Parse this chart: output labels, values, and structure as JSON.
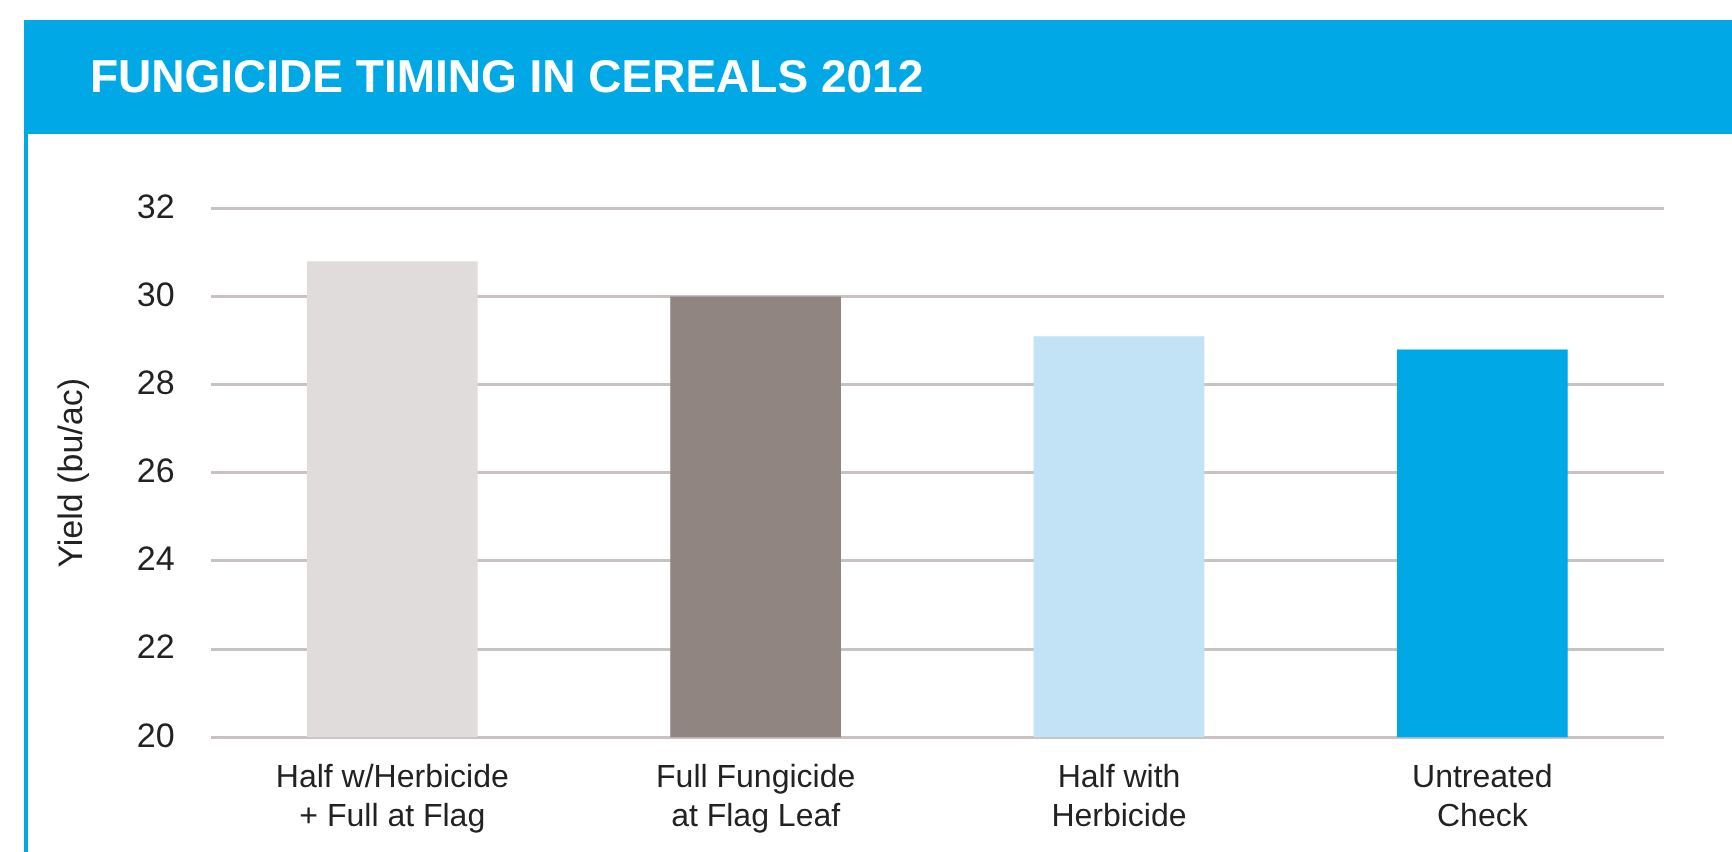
{
  "chart_data": {
    "type": "bar",
    "title": "FUNGICIDE TIMING IN CEREALS 2012",
    "ylabel": "Yield (bu/ac)",
    "categories": [
      "Half w/Herbicide\n+ Full at Flag",
      "Full Fungicide\nat Flag Leaf",
      "Half with\nHerbicide",
      "Untreated\nCheck"
    ],
    "values": [
      30.8,
      30.0,
      29.1,
      28.8
    ],
    "colors": [
      "#e0dcdb",
      "#908580",
      "#c2e2f6",
      "#00a9e6"
    ],
    "ylim": [
      20,
      32
    ],
    "yticks": [
      20,
      22,
      24,
      26,
      28,
      30,
      32
    ],
    "grid": "y",
    "legend": false
  }
}
